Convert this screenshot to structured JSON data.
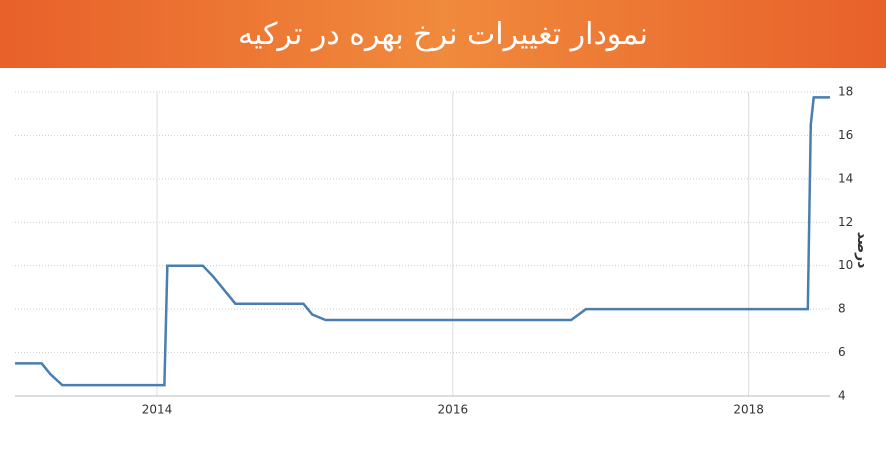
{
  "chart_data": {
    "type": "line",
    "title": "نمودار تغییرات نرخ بهره در ترکیه",
    "y_label": "درصد",
    "x": [
      2013.04,
      2013.22,
      2013.28,
      2013.36,
      2014.05,
      2014.07,
      2014.31,
      2014.38,
      2014.53,
      2014.99,
      2015.05,
      2015.14,
      2016.8,
      2016.9,
      2018.4,
      2018.42,
      2018.44,
      2018.55
    ],
    "series": [
      {
        "color": "#4a7eb0",
        "values": [
          5.5,
          5.5,
          5.0,
          4.5,
          4.5,
          10,
          10,
          9.5,
          8.25,
          8.25,
          7.75,
          7.5,
          7.5,
          8,
          8,
          16.5,
          17.75,
          17.75
        ]
      }
    ],
    "xlim": [
      2013.04,
      2018.55
    ],
    "xticks": [
      2014,
      2016,
      2018
    ],
    "ylim": [
      4,
      18
    ],
    "yticks": [
      4,
      6,
      8,
      10,
      12,
      14,
      16,
      18
    ],
    "grid": true
  }
}
